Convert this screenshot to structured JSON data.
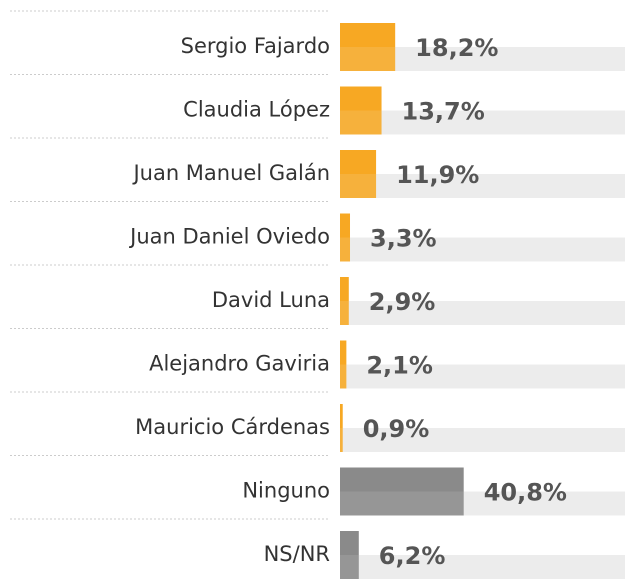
{
  "chart_data": {
    "type": "bar",
    "categories": [
      "Sergio Fajardo",
      "Claudia López",
      "Juan Manuel Galán",
      "Juan Daniel Oviedo",
      "David Luna",
      "Alejandro Gaviria",
      "Mauricio Cárdenas",
      "Ninguno",
      "NS/NR"
    ],
    "values": [
      18.2,
      13.7,
      11.9,
      3.3,
      2.9,
      2.1,
      0.9,
      40.8,
      6.2
    ],
    "value_labels": [
      "18,2%",
      "13,7%",
      "11,9%",
      "3,3%",
      "2,9%",
      "2,1%",
      "0,9%",
      "40,8%",
      "6,2%"
    ],
    "colors": [
      "#f7a823",
      "#f7a823",
      "#f7a823",
      "#f7a823",
      "#f7a823",
      "#f7a823",
      "#f7a823",
      "#8a8a8a",
      "#8a8a8a"
    ],
    "xlim": [
      0,
      94
    ]
  }
}
